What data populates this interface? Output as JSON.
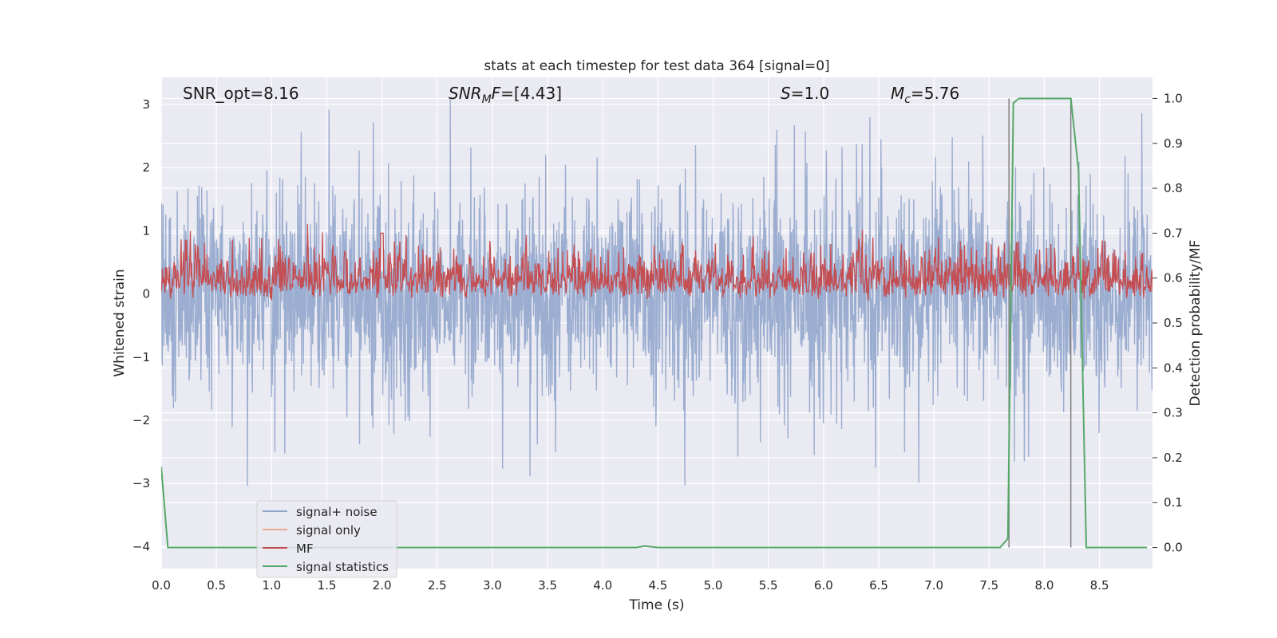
{
  "chart_data": {
    "type": "line",
    "title": "stats at each timestep for test data 364 [signal=0]",
    "xlabel": "Time (s)",
    "ylabel_left": "Whitened strain",
    "ylabel_right": "Detection probability/MF",
    "xlim": [
      0.0,
      8.98
    ],
    "ylim_left": [
      -4.35,
      3.43
    ],
    "ylim_right": [
      -0.047,
      1.047
    ],
    "x_ticks": [
      "0.0",
      "0.5",
      "1.0",
      "1.5",
      "2.0",
      "2.5",
      "3.0",
      "3.5",
      "4.0",
      "4.5",
      "5.0",
      "5.5",
      "6.0",
      "6.5",
      "7.0",
      "7.5",
      "8.0",
      "8.5"
    ],
    "y_ticks_left": [
      "−4",
      "−3",
      "−2",
      "−1",
      "0",
      "1",
      "2",
      "3"
    ],
    "y_ticks_right": [
      "0.0",
      "0.1",
      "0.2",
      "0.3",
      "0.4",
      "0.5",
      "0.6",
      "0.7",
      "0.8",
      "0.9",
      "1.0"
    ],
    "grid": true,
    "legend_position": "lower-left",
    "annotations": [
      {
        "text": "SNR_opt=8.16",
        "x": 0.2
      },
      {
        "html": "SNR<tspan font-style='italic'></tspan>",
        "text": "SNR_MF=[4.43]",
        "x": 2.6
      },
      {
        "text": "S=1.0",
        "x": 5.6
      },
      {
        "text": "M_c=5.76",
        "x": 6.6
      }
    ],
    "vertical_lines": [
      7.68,
      8.24
    ],
    "series": [
      {
        "name": "signal+ noise",
        "color": "#92a6cc",
        "axis": "left",
        "description": "whitened noise, roughly uniform amplitude ±1.5 with spikes up to ±3"
      },
      {
        "name": "signal only",
        "color": "#e8a98e",
        "axis": "left",
        "values": []
      },
      {
        "name": "MF",
        "color": "#c44e52",
        "axis": "left",
        "description": "matched-filter output fluctuating between 0 and ~0.7, peak ~1.0 near t=2.0"
      },
      {
        "name": "signal statistics",
        "color": "#55a868",
        "axis": "right",
        "x": [
          0.0,
          0.06,
          0.12,
          4.3,
          4.38,
          4.5,
          7.6,
          7.67,
          7.72,
          7.77,
          7.82,
          8.24,
          8.31,
          8.38,
          8.44,
          8.5,
          8.93
        ],
        "y": [
          0.18,
          0.0,
          0.0,
          0.0,
          0.003,
          0.0,
          0.0,
          0.02,
          0.99,
          1.0,
          1.0,
          1.0,
          0.84,
          0.0,
          0.0,
          0.0,
          0.0
        ]
      }
    ],
    "colors": {
      "background": "#eaeaf2",
      "grid": "#ffffff",
      "vline": "#808080"
    }
  }
}
